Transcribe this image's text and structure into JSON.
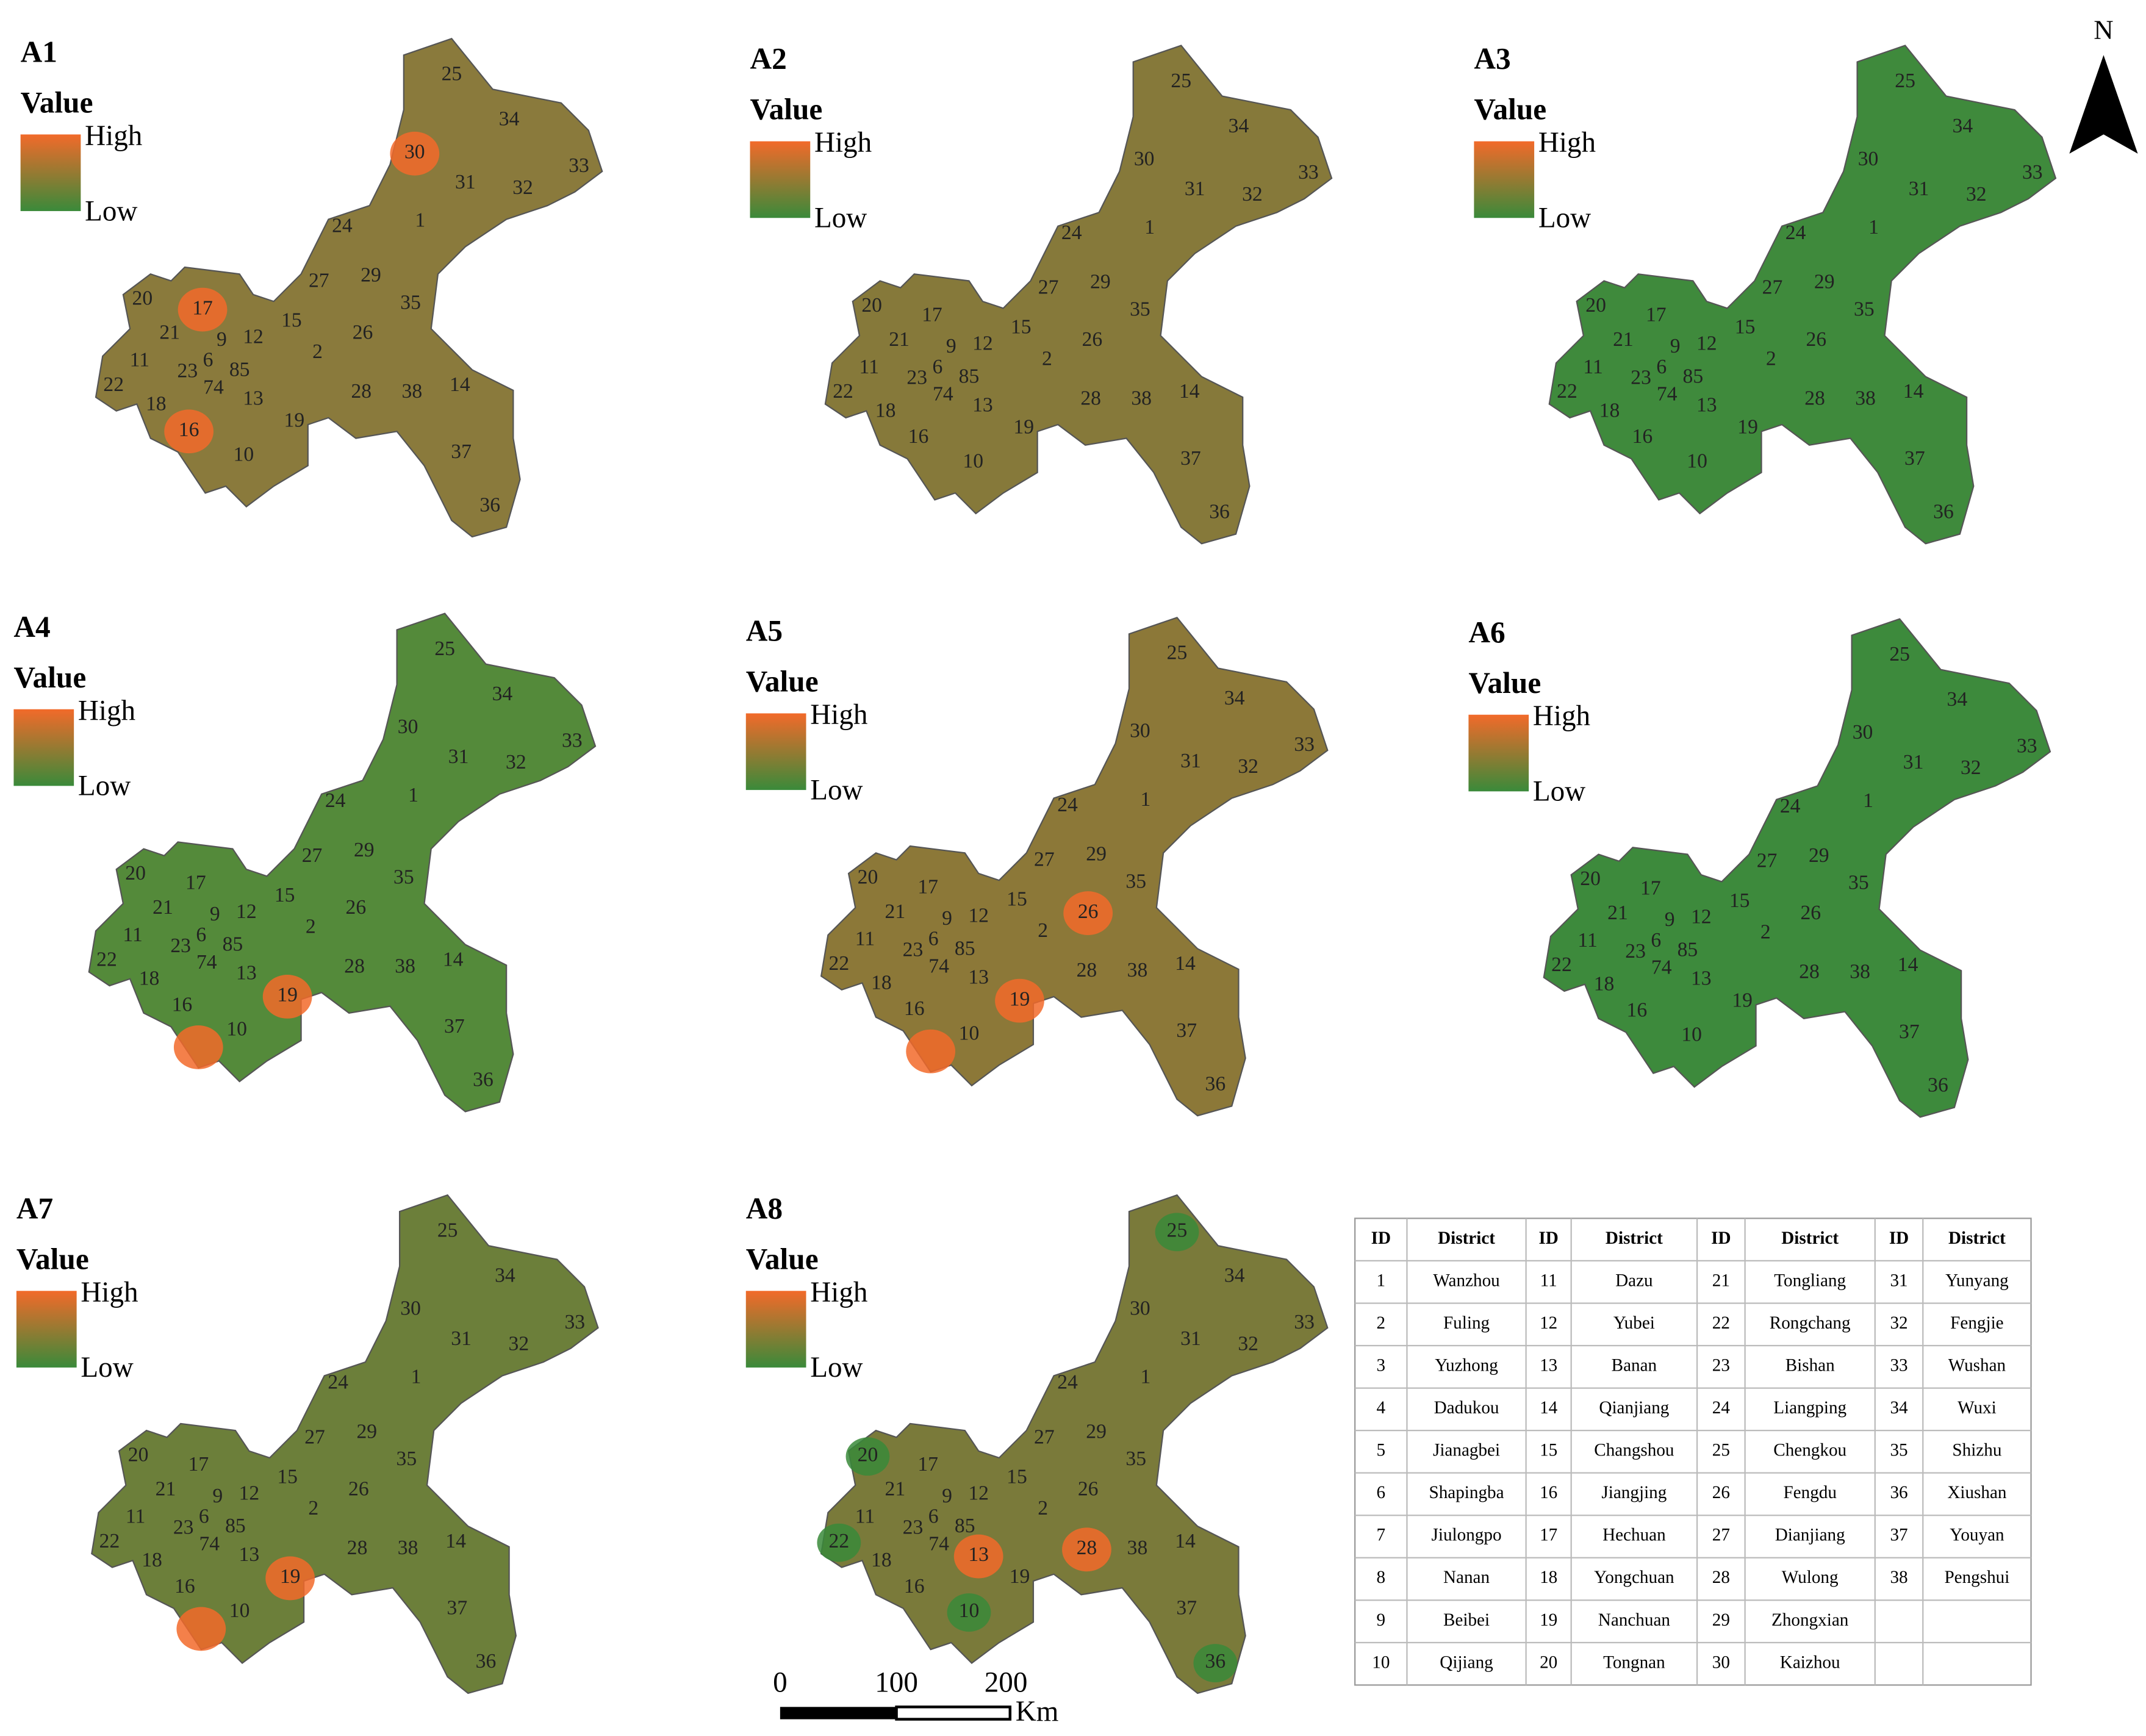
{
  "north": "N",
  "legend": {
    "title": "Value",
    "high": "High",
    "low": "Low"
  },
  "panels": [
    {
      "label": "A1"
    },
    {
      "label": "A2"
    },
    {
      "label": "A3"
    },
    {
      "label": "A4"
    },
    {
      "label": "A5"
    },
    {
      "label": "A6"
    },
    {
      "label": "A7"
    },
    {
      "label": "A8"
    }
  ],
  "map_labels": [
    "25",
    "34",
    "33",
    "30",
    "31",
    "32",
    "1",
    "24",
    "29",
    "27",
    "35",
    "20",
    "17",
    "15",
    "12",
    "21",
    "9",
    "26",
    "6",
    "85",
    "23",
    "2",
    "11",
    "74",
    "22",
    "13",
    "18",
    "28",
    "38",
    "14",
    "19",
    "16",
    "10",
    "37",
    "36"
  ],
  "scale": {
    "ticks": [
      "0",
      "100",
      "200"
    ],
    "unit": "Km"
  },
  "table": {
    "header": [
      "ID",
      "District",
      "ID",
      "District",
      "ID",
      "District",
      "ID",
      "District"
    ],
    "rows": [
      [
        "1",
        "Wanzhou",
        "11",
        "Dazu",
        "21",
        "Tongliang",
        "31",
        "Yunyang"
      ],
      [
        "2",
        "Fuling",
        "12",
        "Yubei",
        "22",
        "Rongchang",
        "32",
        "Fengjie"
      ],
      [
        "3",
        "Yuzhong",
        "13",
        "Banan",
        "23",
        "Bishan",
        "33",
        "Wushan"
      ],
      [
        "4",
        "Dadukou",
        "14",
        "Qianjiang",
        "24",
        "Liangping",
        "34",
        "Wuxi"
      ],
      [
        "5",
        "Jianagbei",
        "15",
        "Changshou",
        "25",
        "Chengkou",
        "35",
        "Shizhu"
      ],
      [
        "6",
        "Shapingba",
        "16",
        "Jiangjing",
        "26",
        "Fengdu",
        "36",
        "Xiushan"
      ],
      [
        "7",
        "Jiulongpo",
        "17",
        "Hechuan",
        "27",
        "Dianjiang",
        "37",
        "Youyan"
      ],
      [
        "8",
        "Nanan",
        "18",
        "Yongchuan",
        "28",
        "Wulong",
        "38",
        "Pengshui"
      ],
      [
        "9",
        "Beibei",
        "19",
        "Nanchuan",
        "29",
        "Zhongxian"
      ],
      [
        "10",
        "Qijiang",
        "20",
        "Tongnan",
        "30",
        "Kaizhou"
      ]
    ]
  }
}
